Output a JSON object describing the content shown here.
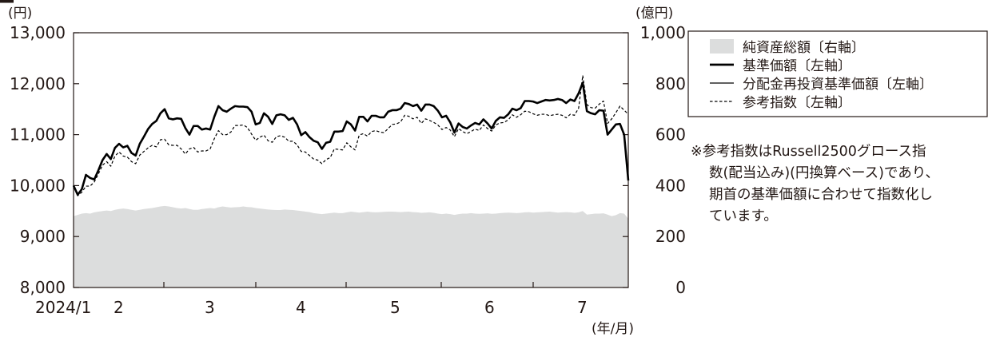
{
  "chart_data": {
    "type": "line",
    "left_axis": {
      "unit": "(円)",
      "ticks": [
        "8,000",
        "9,000",
        "10,000",
        "11,000",
        "12,000",
        "13,000"
      ],
      "values": [
        8000,
        9000,
        10000,
        11000,
        12000,
        13000
      ],
      "range": [
        8000,
        13000
      ]
    },
    "right_axis": {
      "unit": "(億円)",
      "ticks": [
        "0",
        "200",
        "400",
        "600",
        "800",
        "1,000"
      ],
      "values": [
        0,
        200,
        400,
        600,
        800,
        1000
      ],
      "range": [
        0,
        1000
      ]
    },
    "x_axis": {
      "unit": "(年/月)",
      "labels": [
        "2024/1",
        "2",
        "3",
        "4",
        "5",
        "6",
        "7"
      ]
    },
    "legend": [
      {
        "label": "純資産総額〔右軸〕",
        "style": "area",
        "color": "#dcdddd"
      },
      {
        "label": "基準価額〔左軸〕",
        "style": "thick-line",
        "color": "#000000"
      },
      {
        "label": "分配金再投資基準価額〔左軸〕",
        "style": "thin-line",
        "color": "#000000"
      },
      {
        "label": "参考指数〔左軸〕",
        "style": "dashed-line",
        "color": "#000000"
      }
    ],
    "note": [
      "※参考指数はRussell2500グロース指",
      "数(配当込み)(円換算ベース)であり、",
      "期首の基準価額に合わせて指数化し",
      "ています。"
    ],
    "series": [
      {
        "name": "基準価額〔左軸〕",
        "axis": "left",
        "values": [
          10000,
          9820,
          9930,
          10210,
          10150,
          10120,
          10300,
          10500,
          10620,
          10520,
          10740,
          10820,
          10750,
          10780,
          10640,
          10590,
          10820,
          10960,
          11110,
          11210,
          11270,
          11420,
          11500,
          11320,
          11300,
          11320,
          11310,
          11130,
          11000,
          11170,
          11170,
          11100,
          11120,
          11100,
          11350,
          11560,
          11480,
          11450,
          11510,
          11560,
          11550,
          11550,
          11540,
          11450,
          11200,
          11230,
          11420,
          11350,
          11210,
          11380,
          11400,
          11380,
          11290,
          11330,
          11200,
          10990,
          11050,
          10950,
          10880,
          10850,
          10720,
          10840,
          10860,
          11060,
          11060,
          11070,
          11260,
          11200,
          11080,
          11350,
          11350,
          11260,
          11370,
          11370,
          11340,
          11340,
          11450,
          11480,
          11480,
          11510,
          11620,
          11600,
          11560,
          11590,
          11470,
          11590,
          11590,
          11560,
          11470,
          11340,
          11370,
          11240,
          11040,
          11220,
          11150,
          11120,
          11180,
          11230,
          11200,
          11300,
          11220,
          11120,
          11270,
          11340,
          11330,
          11400,
          11510,
          11480,
          11520,
          11660,
          11660,
          11650,
          11620,
          11650,
          11680,
          11670,
          11680,
          11700,
          11680,
          11620,
          11690,
          11660,
          11810,
          12020,
          11460,
          11420,
          11400,
          11480,
          11470,
          11000,
          11100,
          11200,
          11210,
          11000,
          10100
        ]
      },
      {
        "name": "分配金再投資基準価額〔左軸〕",
        "axis": "left",
        "values": [
          10000,
          9820,
          9930,
          10210,
          10150,
          10120,
          10300,
          10500,
          10620,
          10520,
          10740,
          10820,
          10750,
          10780,
          10640,
          10590,
          10820,
          10960,
          11110,
          11210,
          11270,
          11420,
          11500,
          11320,
          11300,
          11320,
          11310,
          11130,
          11000,
          11170,
          11170,
          11100,
          11120,
          11100,
          11350,
          11560,
          11480,
          11450,
          11510,
          11560,
          11550,
          11550,
          11540,
          11450,
          11200,
          11230,
          11420,
          11350,
          11210,
          11380,
          11400,
          11380,
          11290,
          11330,
          11200,
          10990,
          11050,
          10950,
          10880,
          10850,
          10720,
          10840,
          10860,
          11060,
          11060,
          11070,
          11260,
          11200,
          11080,
          11350,
          11350,
          11260,
          11370,
          11370,
          11340,
          11340,
          11450,
          11480,
          11480,
          11510,
          11620,
          11600,
          11560,
          11590,
          11470,
          11590,
          11590,
          11560,
          11470,
          11340,
          11370,
          11240,
          11040,
          11220,
          11150,
          11120,
          11180,
          11230,
          11200,
          11300,
          11220,
          11120,
          11270,
          11340,
          11330,
          11400,
          11510,
          11480,
          11520,
          11660,
          11660,
          11650,
          11620,
          11650,
          11680,
          11670,
          11680,
          11700,
          11680,
          11620,
          11690,
          11660,
          11810,
          12020,
          11460,
          11420,
          11400,
          11480,
          11470,
          11000,
          11100,
          11200,
          11210,
          11000,
          10100
        ]
      },
      {
        "name": "参考指数〔左軸〕",
        "axis": "left",
        "values": [
          10000,
          9800,
          9870,
          9990,
          9990,
          10070,
          10230,
          10400,
          10470,
          10380,
          10580,
          10660,
          10580,
          10560,
          10470,
          10430,
          10600,
          10670,
          10740,
          10790,
          10760,
          10900,
          10910,
          10800,
          10790,
          10790,
          10720,
          10620,
          10720,
          10750,
          10660,
          10680,
          10680,
          10720,
          10920,
          11080,
          11000,
          11000,
          11050,
          11180,
          11180,
          11190,
          11140,
          11010,
          10890,
          10950,
          10990,
          10880,
          10850,
          10960,
          10980,
          10950,
          10870,
          10870,
          10800,
          10670,
          10660,
          10590,
          10520,
          10500,
          10430,
          10510,
          10550,
          10720,
          10710,
          10700,
          10840,
          10760,
          10700,
          10990,
          11020,
          10970,
          11060,
          11080,
          11050,
          11040,
          11120,
          11200,
          11210,
          11250,
          11380,
          11360,
          11310,
          11340,
          11220,
          11310,
          11280,
          11240,
          11190,
          11100,
          11140,
          11090,
          10960,
          11120,
          11060,
          11020,
          11060,
          11110,
          11080,
          11190,
          11120,
          11070,
          11190,
          11230,
          11240,
          11290,
          11390,
          11340,
          11390,
          11460,
          11450,
          11410,
          11380,
          11400,
          11400,
          11370,
          11390,
          11400,
          11380,
          11330,
          11400,
          11380,
          11520,
          12160,
          11590,
          11530,
          11520,
          11600,
          11660,
          11220,
          11310,
          11430,
          11560,
          11480,
          11400
        ]
      },
      {
        "name": "純資産総額〔右軸〕",
        "axis": "right",
        "values": [
          280,
          285,
          290,
          292,
          290,
          295,
          298,
          300,
          302,
          300,
          305,
          308,
          310,
          308,
          305,
          302,
          305,
          308,
          310,
          312,
          315,
          318,
          320,
          318,
          315,
          312,
          310,
          312,
          308,
          305,
          305,
          308,
          310,
          312,
          310,
          315,
          318,
          316,
          314,
          315,
          316,
          318,
          316,
          315,
          312,
          310,
          308,
          306,
          305,
          304,
          304,
          306,
          305,
          304,
          302,
          300,
          298,
          296,
          292,
          290,
          288,
          290,
          292,
          294,
          292,
          292,
          295,
          298,
          296,
          294,
          296,
          298,
          296,
          295,
          296,
          297,
          298,
          298,
          297,
          296,
          297,
          298,
          296,
          295,
          293,
          294,
          295,
          293,
          290,
          288,
          290,
          288,
          285,
          288,
          290,
          290,
          292,
          290,
          289,
          290,
          291,
          289,
          290,
          292,
          293,
          294,
          293,
          292,
          293,
          295,
          296,
          294,
          295,
          296,
          297,
          298,
          296,
          294,
          295,
          296,
          295,
          293,
          295,
          300,
          286,
          288,
          290,
          290,
          291,
          286,
          280,
          284,
          292,
          290,
          270
        ]
      }
    ]
  }
}
